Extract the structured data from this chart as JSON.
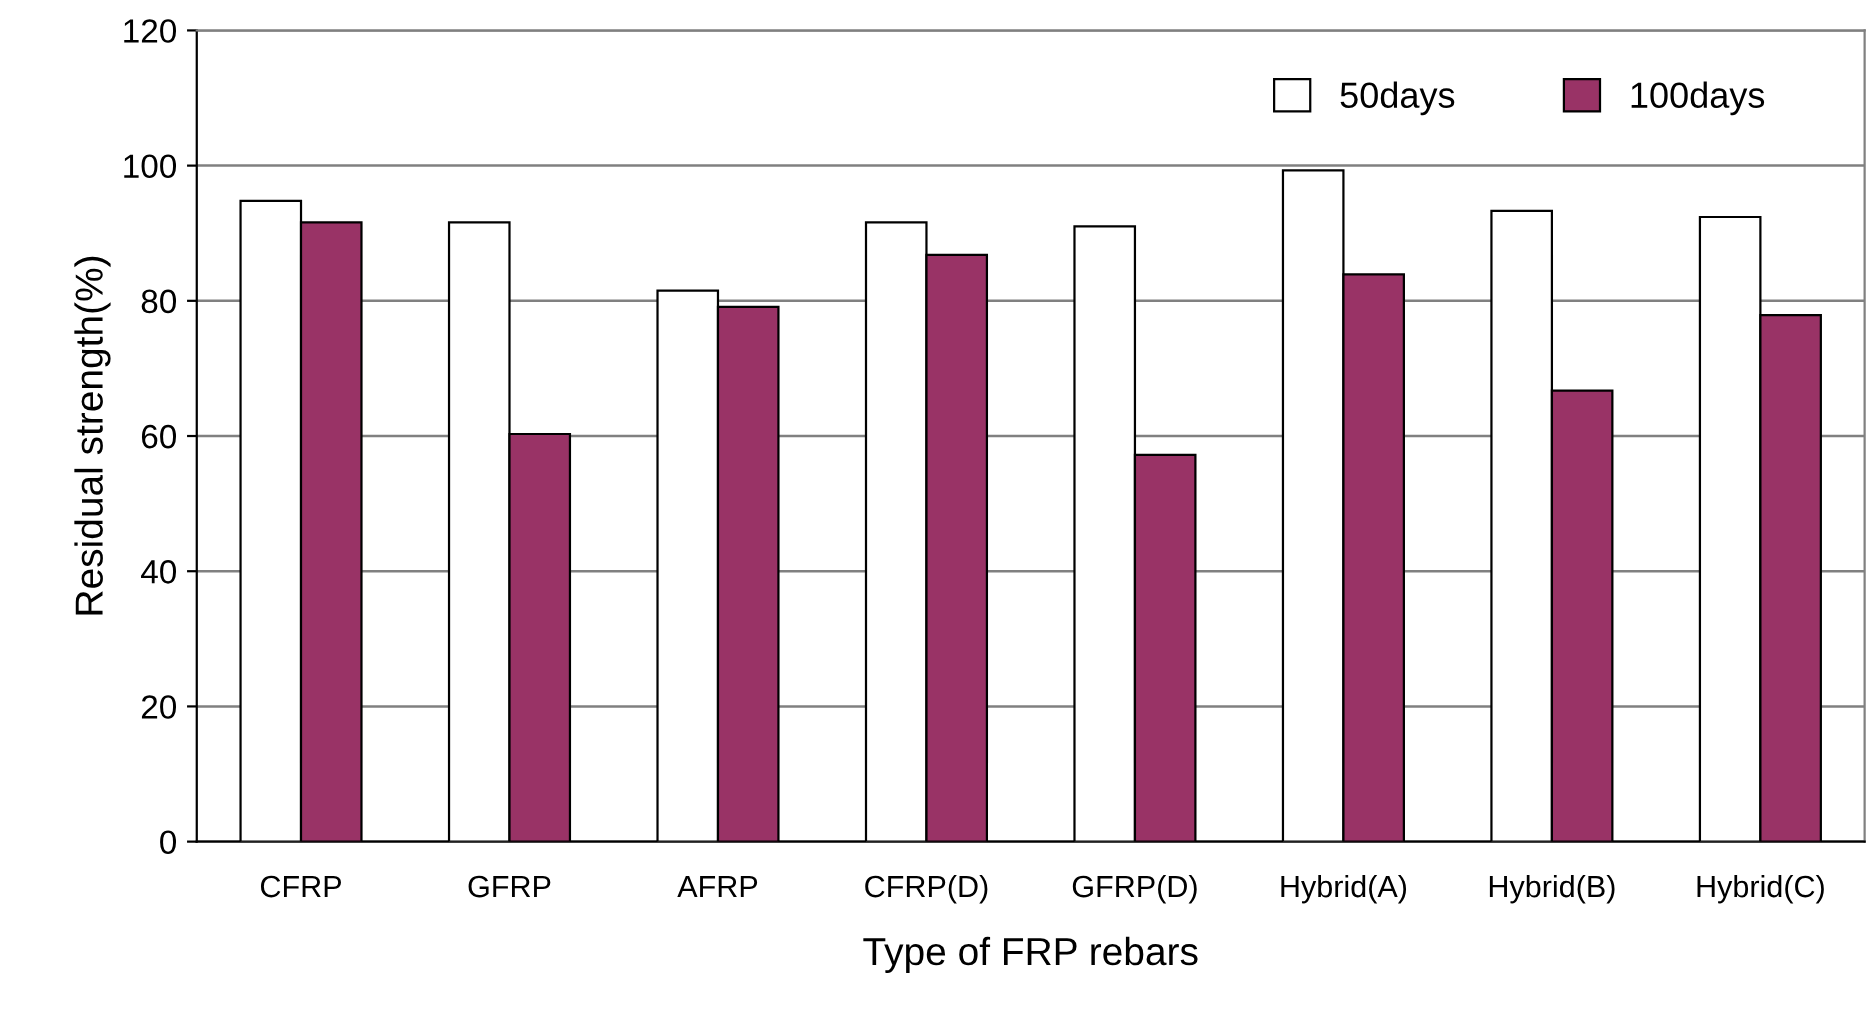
{
  "chart_data": {
    "type": "bar",
    "xlabel": "Type of FRP rebars",
    "ylabel": "Residual strength(%)",
    "categories": [
      "CFRP",
      "GFRP",
      "AFRP",
      "CFRP(D)",
      "GFRP(D)",
      "Hybrid(A)",
      "Hybrid(B)",
      "Hybrid(C)"
    ],
    "series": [
      {
        "name": "50days",
        "color": "#ffffff",
        "values": [
          94.8,
          91.6,
          81.5,
          91.6,
          91,
          99.3,
          93.3,
          92.4
        ]
      },
      {
        "name": "100days",
        "color": "#993366",
        "values": [
          91.6,
          60.3,
          79.1,
          86.8,
          57.2,
          83.9,
          66.7,
          77.9
        ]
      }
    ],
    "ylim": [
      0,
      120
    ],
    "yticks": [
      0,
      20,
      40,
      60,
      80,
      100,
      120
    ],
    "grid": "y",
    "legend": "top right"
  }
}
